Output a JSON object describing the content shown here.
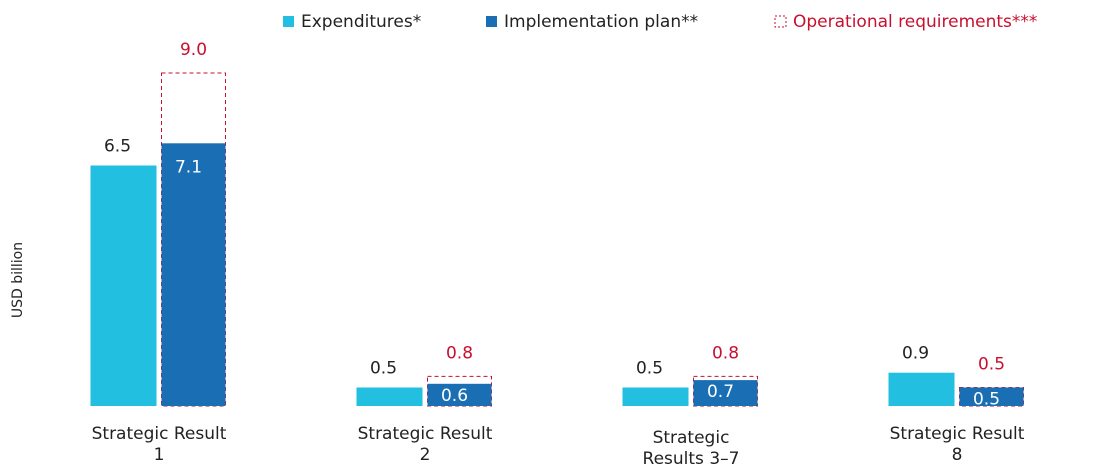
{
  "chart_data": {
    "type": "bar",
    "y_label": "USD billion",
    "categories": [
      "Strategic Result 1",
      "Strategic Result 2",
      "Strategic Results 3–7",
      "Strategic Result 8"
    ],
    "series": [
      {
        "name": "Expenditures*",
        "color": "#22bfe0",
        "values": [
          6.5,
          0.5,
          0.5,
          0.9
        ],
        "value_labels": [
          "6.5",
          "0.5",
          "0.5",
          "0.9"
        ]
      },
      {
        "name": "Implementation plan**",
        "color": "#1a6fb4",
        "values": [
          7.1,
          0.6,
          0.7,
          0.5
        ],
        "value_labels": [
          "7.1",
          "0.6",
          "0.7",
          "0.5"
        ]
      },
      {
        "name": "Operational requirements***",
        "color": "#c8102e",
        "style": "dashed",
        "values": [
          9.0,
          0.8,
          0.8,
          0.5
        ],
        "value_labels": [
          "9.0",
          "0.8",
          "0.8",
          "0.5"
        ]
      }
    ],
    "ylim": [
      0,
      10
    ]
  }
}
